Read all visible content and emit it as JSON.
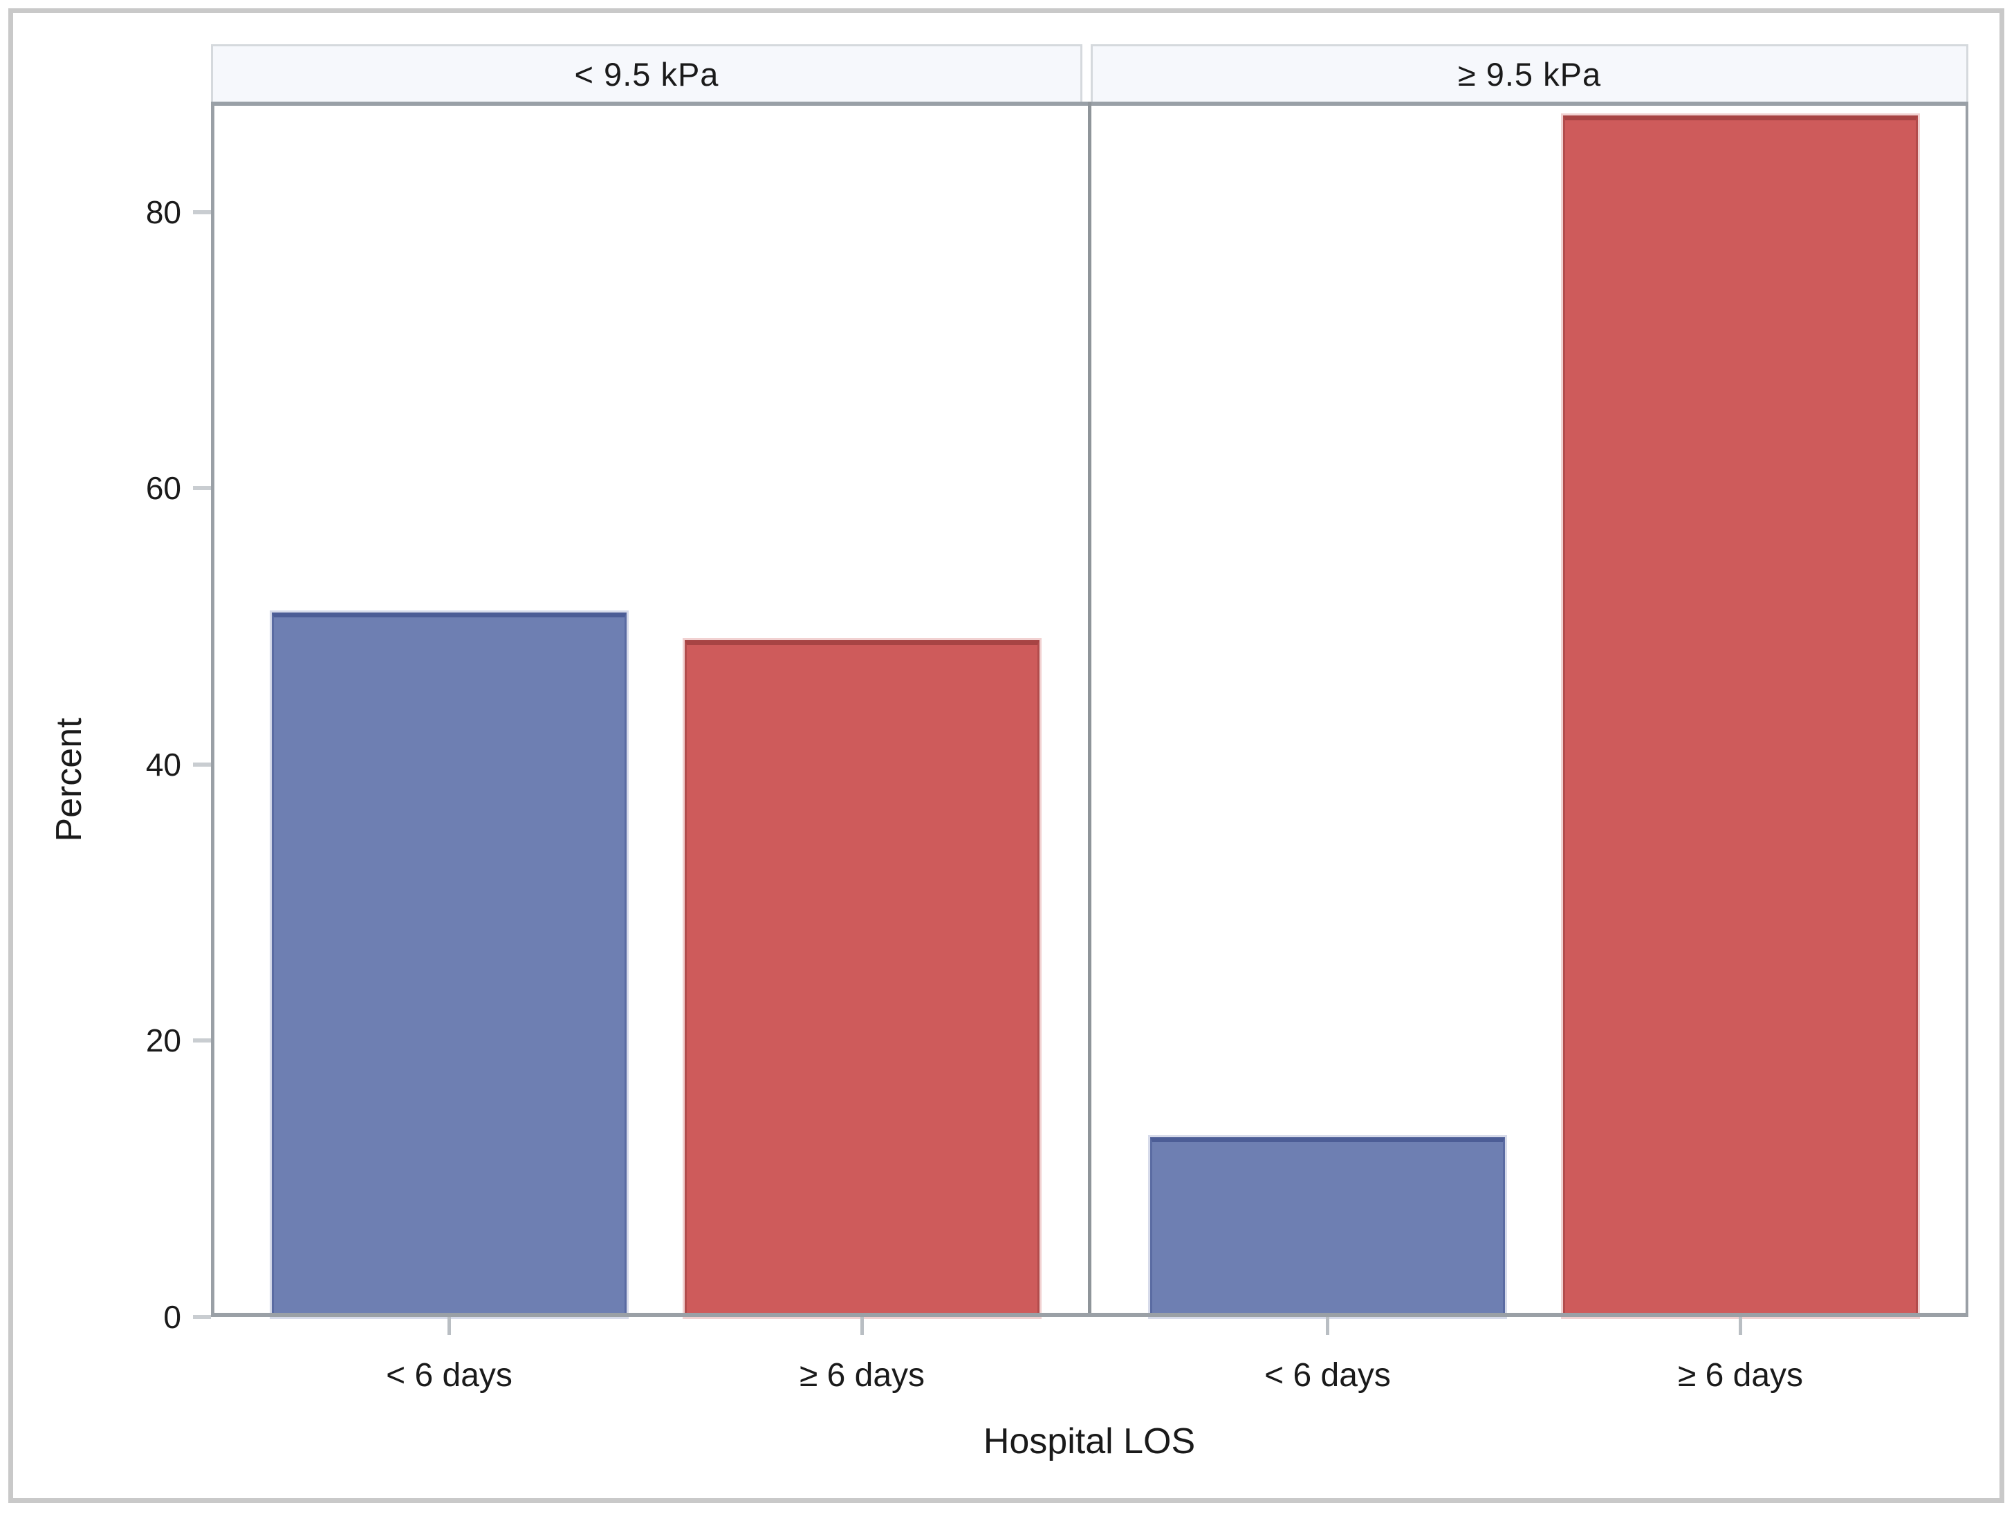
{
  "chart_data": {
    "type": "bar",
    "title": "",
    "panels": [
      {
        "label": "< 9.5 kPa",
        "values": [
          51,
          49
        ]
      },
      {
        "label": "≥ 9.5 kPa",
        "values": [
          13,
          87
        ]
      }
    ],
    "categories": [
      "< 6 days",
      "≥ 6 days"
    ],
    "xlabel": "Hospital LOS",
    "ylabel": "Percent",
    "yticks": [
      0,
      20,
      40,
      60,
      80
    ],
    "ylim": [
      0,
      88
    ],
    "grid": false,
    "legend": "none",
    "bar_colors": [
      "#6E7FB2",
      "#CE5B5B"
    ]
  },
  "colors": {
    "background": "#FFFFFF",
    "outer_border": "#C9C9C9",
    "band_background": "#F6F8FC",
    "band_border": "#D5D9DD",
    "frame_line": "#9AA0A6",
    "panel_divider": "#8F959A",
    "y_tick_mark": "#C9CDD1",
    "x_tick_mark": "#B9BEC3",
    "bar_blue_fill": "#6E7FB2",
    "bar_blue_border": "#5A6BA2",
    "bar_blue_top_edge": "#4C5D96",
    "bar_red_fill": "#CE5B5B",
    "bar_red_border": "#B24C4C",
    "bar_red_top_edge": "#A74444",
    "text": "#1A1A1A"
  }
}
